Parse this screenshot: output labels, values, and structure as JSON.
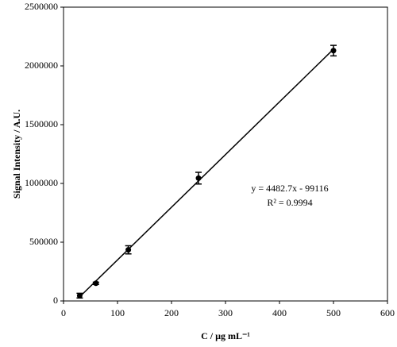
{
  "chart_data": {
    "type": "scatter",
    "xlabel": "C / µg mL⁻¹",
    "ylabel": "Signal Intensity / A.U.",
    "xlim": [
      0,
      600
    ],
    "xticks": [
      0,
      100,
      200,
      300,
      400,
      500,
      600
    ],
    "ylim": [
      0,
      2500000
    ],
    "yticks": [
      0,
      500000,
      1000000,
      1500000,
      2000000,
      2500000
    ],
    "grid": false,
    "color": "#000000",
    "points": {
      "x": [
        30,
        60,
        120,
        250,
        500
      ],
      "values": [
        45000,
        150000,
        435000,
        1045000,
        2130000
      ],
      "errors": [
        20000,
        10000,
        35000,
        50000,
        45000
      ]
    },
    "fit_line": {
      "x": [
        30,
        500
      ],
      "values": [
        35365,
        2142234
      ]
    },
    "annotations": [
      "y = 4482.7x - 99116",
      "R² = 0.9994"
    ]
  }
}
